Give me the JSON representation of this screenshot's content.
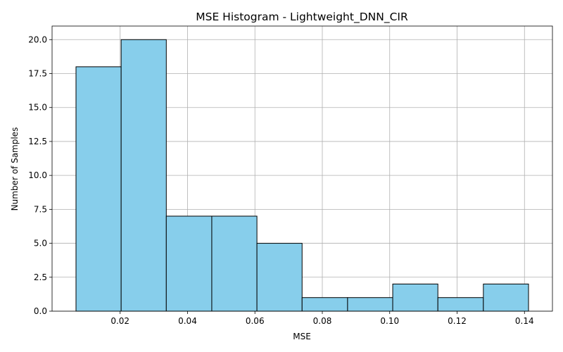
{
  "chart_data": {
    "type": "bar",
    "title": "MSE Histogram - Lightweight_DNN_CIR",
    "xlabel": "MSE",
    "ylabel": "Number of Samples",
    "bin_edges": [
      0.0069,
      0.0203,
      0.0337,
      0.0472,
      0.0606,
      0.074,
      0.0875,
      0.1009,
      0.1143,
      0.1278,
      0.1412
    ],
    "values": [
      18,
      20,
      7,
      7,
      5,
      1,
      1,
      2,
      1,
      2
    ],
    "xlim": [
      -0.0002,
      0.1483
    ],
    "ylim": [
      0,
      21
    ],
    "xticks": [
      0.02,
      0.04,
      0.06,
      0.08,
      0.1,
      0.12,
      0.14
    ],
    "xtick_labels": [
      "0.02",
      "0.04",
      "0.06",
      "0.08",
      "0.10",
      "0.12",
      "0.14"
    ],
    "yticks": [
      0,
      2.5,
      5,
      7.5,
      10,
      12.5,
      15,
      17.5,
      20
    ],
    "ytick_labels": [
      "0.0",
      "2.5",
      "5.0",
      "7.5",
      "10.0",
      "12.5",
      "15.0",
      "17.5",
      "20.0"
    ],
    "grid": true,
    "bar_color": "#87ceeb",
    "edge_color": "#000000",
    "grid_color": "#b0b0b0"
  }
}
